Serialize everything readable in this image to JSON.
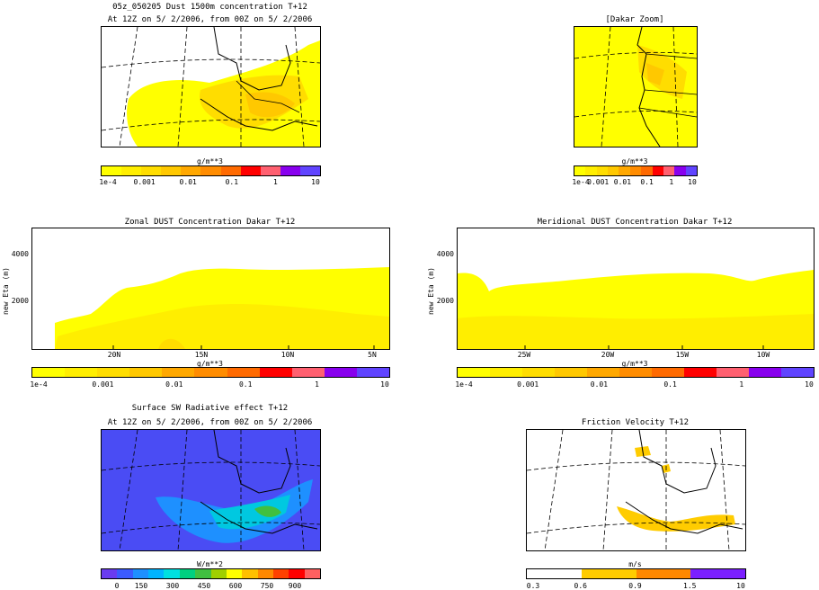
{
  "map_dust": {
    "title": "05z_050205 Dust 1500m concentration T+12",
    "subtitle": "At 12Z on 5/ 2/2006, from 00Z on 5/ 2/2006",
    "unit": "g/m**3",
    "ticks": [
      "1e-4",
      "0.001",
      "0.01",
      "0.1",
      "1",
      "10"
    ]
  },
  "map_dakar": {
    "title": "[Dakar Zoom]",
    "unit": "g/m**3",
    "ticks": [
      "1e-4",
      "0.001",
      "0.01",
      "0.1",
      "1",
      "10"
    ]
  },
  "zonal": {
    "title": "Zonal DUST Concentration Dakar T+12",
    "ylabel": "new Eta (m)",
    "yticks": [
      "4000",
      "2000"
    ],
    "xticks": [
      "20N",
      "15N",
      "10N",
      "5N"
    ],
    "unit": "g/m**3",
    "ticks": [
      "1e-4",
      "0.001",
      "0.01",
      "0.1",
      "1",
      "10"
    ]
  },
  "meridional": {
    "title": "Meridional DUST Concentration Dakar T+12",
    "ylabel": "new Eta (m)",
    "yticks": [
      "4000",
      "2000"
    ],
    "xticks": [
      "25W",
      "20W",
      "15W",
      "10W"
    ],
    "unit": "g/m**3",
    "ticks": [
      "1e-4",
      "0.001",
      "0.01",
      "0.1",
      "1",
      "10"
    ]
  },
  "radiative": {
    "title": "Surface SW Radiative effect T+12",
    "subtitle": "At 12Z on 5/ 2/2006, from 00Z on 5/ 2/2006",
    "unit": "W/m**2",
    "ticks": [
      "0",
      "150",
      "300",
      "450",
      "600",
      "750",
      "900"
    ]
  },
  "friction": {
    "title": "Friction Velocity T+12",
    "unit": "m/s",
    "ticks": [
      "0.3",
      "0.6",
      "0.9",
      "1.5",
      "10"
    ]
  },
  "colors": {
    "dust": [
      "#ffff00",
      "#ffee00",
      "#ffdd00",
      "#ffc800",
      "#ffa800",
      "#ff8c00",
      "#ff6a00",
      "#ff0000",
      "#ff6070",
      "#8800ee",
      "#6044ff"
    ],
    "radiative": [
      "#6a3cf0",
      "#3b5bff",
      "#1e90ff",
      "#00b4ff",
      "#00e0e0",
      "#00d080",
      "#40c040",
      "#a0d000",
      "#ffff00",
      "#ffc000",
      "#ff8800",
      "#ff4000",
      "#ff0000",
      "#ff6060"
    ],
    "friction": [
      "#ffffff",
      "#ffcc00",
      "#ff8800",
      "#7b1fff"
    ]
  }
}
